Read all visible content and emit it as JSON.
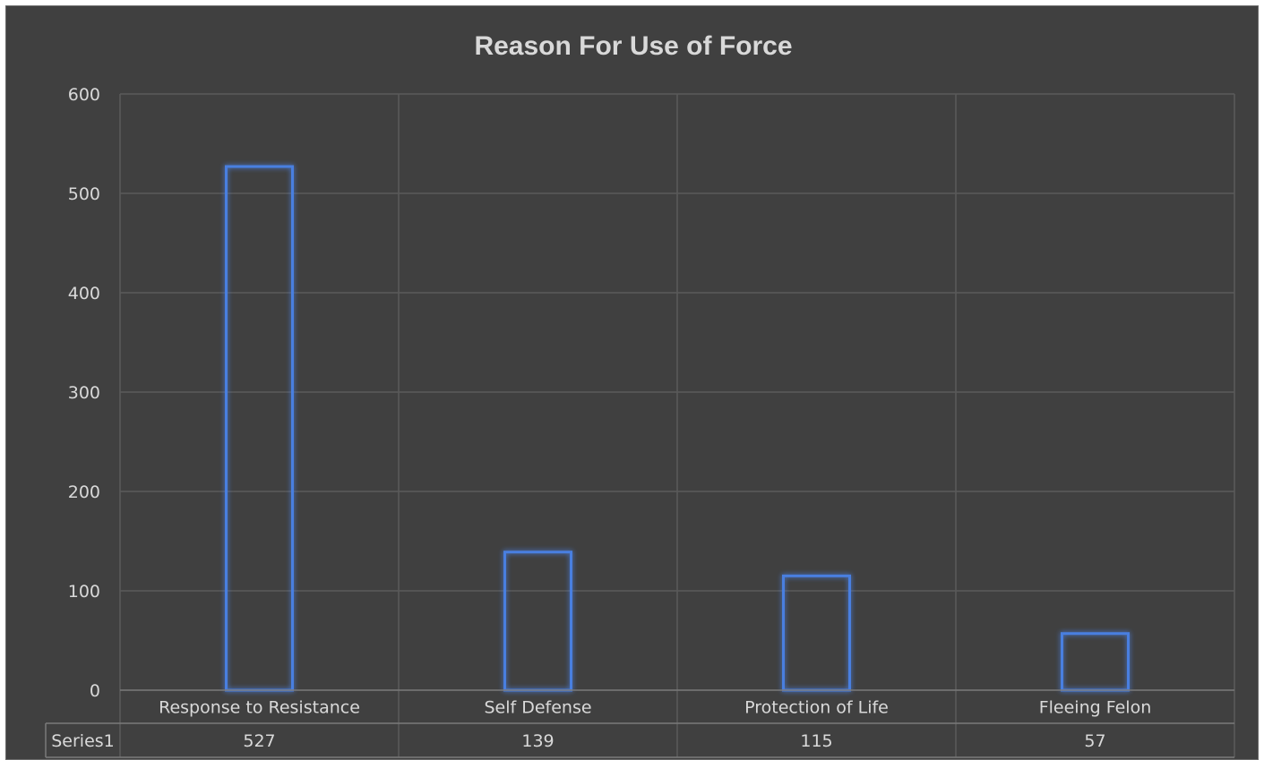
{
  "chart_data": {
    "type": "bar",
    "title": "Reason For Use of Force",
    "categories": [
      "Response to Resistance",
      "Self Defense",
      "Protection of Life",
      "Fleeing Felon"
    ],
    "series": [
      {
        "name": "Series1",
        "values": [
          527,
          139,
          115,
          57
        ]
      }
    ],
    "ylim": [
      0,
      600
    ],
    "yticks": [
      0,
      100,
      200,
      300,
      400,
      500,
      600
    ],
    "grid": true,
    "legend": "none",
    "data_table": true,
    "colors": {
      "background": "#404040",
      "bar_outline": "#4a7fe0",
      "grid": "#5a5a5a",
      "text": "#d9d9d9"
    }
  }
}
